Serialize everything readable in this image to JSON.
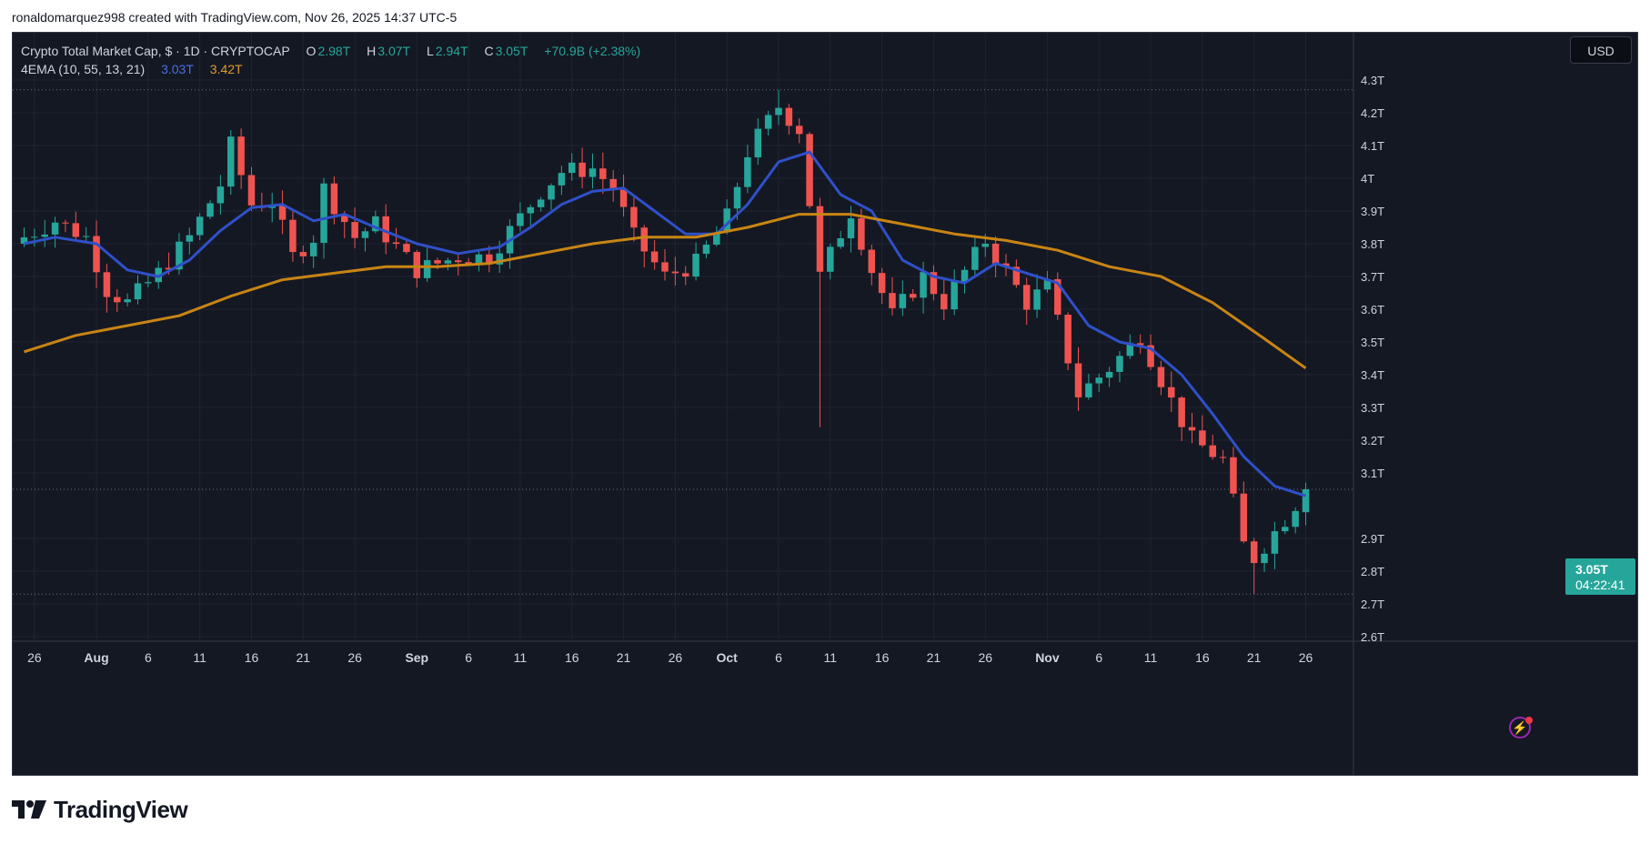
{
  "caption": "ronaldomarquez998 created with TradingView.com, Nov 26, 2025 14:37 UTC-5",
  "legend": {
    "symbol": "Crypto Total Market Cap, $ · 1D · CRYPTOCAP",
    "o_label": "O",
    "o_value": "2.98T",
    "h_label": "H",
    "h_value": "3.07T",
    "l_label": "L",
    "l_value": "2.94T",
    "c_label": "C",
    "c_value": "3.05T",
    "change": "+70.9B (+2.38%)",
    "indicator": "4EMA (10, 55, 13, 21)",
    "ema_fast_value": "3.03T",
    "ema_slow_value": "3.42T"
  },
  "currency_button": "USD",
  "last_price_label": "3.05T",
  "countdown": "04:22:41",
  "brand": "TradingView",
  "colors": {
    "background": "#141823",
    "up": "#26a69a",
    "down": "#ef5350",
    "ema_fast": "#2f50c8",
    "ema_slow": "#c88514",
    "grid": "#1f2430",
    "axis_text": "#d1d4dc"
  },
  "icons": {
    "flash": "lightning-icon",
    "logo": "tradingview-logo-icon"
  },
  "chart_data": {
    "type": "candlestick",
    "unit": "T (trillion USD)",
    "ylim": [
      2.6,
      4.3
    ],
    "y_ticks": [
      4.3,
      4.2,
      4.1,
      4.0,
      3.9,
      3.8,
      3.7,
      3.6,
      3.5,
      3.4,
      3.3,
      3.2,
      3.1,
      2.9,
      2.8,
      2.7,
      2.6
    ],
    "y_tick_labels": [
      "4.3T",
      "4.2T",
      "4.1T",
      "4T",
      "3.9T",
      "3.8T",
      "3.7T",
      "3.6T",
      "3.5T",
      "3.4T",
      "3.3T",
      "3.2T",
      "3.1T",
      "2.9T",
      "2.8T",
      "2.7T",
      "2.6T"
    ],
    "x_tick_labels": [
      "26",
      "Aug",
      "6",
      "11",
      "16",
      "21",
      "26",
      "Sep",
      "6",
      "11",
      "16",
      "21",
      "26",
      "Oct",
      "6",
      "11",
      "16",
      "21",
      "26",
      "Nov",
      "6",
      "11",
      "16",
      "21",
      "26"
    ],
    "x_tick_dates": [
      "2025-07-26",
      "2025-08-01",
      "2025-08-06",
      "2025-08-11",
      "2025-08-16",
      "2025-08-21",
      "2025-08-26",
      "2025-09-01",
      "2025-09-06",
      "2025-09-11",
      "2025-09-16",
      "2025-09-21",
      "2025-09-26",
      "2025-10-01",
      "2025-10-06",
      "2025-10-11",
      "2025-10-16",
      "2025-10-21",
      "2025-10-26",
      "2025-11-01",
      "2025-11-06",
      "2025-11-11",
      "2025-11-16",
      "2025-11-21",
      "2025-11-26"
    ],
    "start_date": "2025-07-25",
    "end_date": "2025-11-26",
    "highlighted_levels": [
      4.27,
      2.73,
      3.05
    ],
    "ohlc_key_points": [
      {
        "date": "2025-07-25",
        "value": 3.82
      },
      {
        "date": "2025-07-28",
        "value": 3.87
      },
      {
        "date": "2025-07-31",
        "value": 3.82
      },
      {
        "date": "2025-08-02",
        "value": 3.66
      },
      {
        "date": "2025-08-04",
        "value": 3.62
      },
      {
        "date": "2025-08-07",
        "value": 3.71
      },
      {
        "date": "2025-08-10",
        "value": 3.82
      },
      {
        "date": "2025-08-13",
        "value": 3.98
      },
      {
        "date": "2025-08-14",
        "value": 4.1
      },
      {
        "date": "2025-08-16",
        "value": 3.92
      },
      {
        "date": "2025-08-18",
        "value": 3.93
      },
      {
        "date": "2025-08-20",
        "value": 3.76
      },
      {
        "date": "2025-08-22",
        "value": 3.82
      },
      {
        "date": "2025-08-23",
        "value": 3.97
      },
      {
        "date": "2025-08-26",
        "value": 3.82
      },
      {
        "date": "2025-08-28",
        "value": 3.86
      },
      {
        "date": "2025-09-01",
        "value": 3.72
      },
      {
        "date": "2025-09-05",
        "value": 3.76
      },
      {
        "date": "2025-09-08",
        "value": 3.76
      },
      {
        "date": "2025-09-10",
        "value": 3.84
      },
      {
        "date": "2025-09-13",
        "value": 3.96
      },
      {
        "date": "2025-09-15",
        "value": 4.02
      },
      {
        "date": "2025-09-18",
        "value": 4.03
      },
      {
        "date": "2025-09-20",
        "value": 3.97
      },
      {
        "date": "2025-09-22",
        "value": 3.82
      },
      {
        "date": "2025-09-25",
        "value": 3.7
      },
      {
        "date": "2025-09-28",
        "value": 3.74
      },
      {
        "date": "2025-10-01",
        "value": 3.88
      },
      {
        "date": "2025-10-03",
        "value": 4.08
      },
      {
        "date": "2025-10-06",
        "value": 4.22
      },
      {
        "date": "2025-10-08",
        "value": 4.15
      },
      {
        "date": "2025-10-10",
        "value": 3.7
      },
      {
        "date": "2025-10-13",
        "value": 3.9
      },
      {
        "date": "2025-10-15",
        "value": 3.72
      },
      {
        "date": "2025-10-17",
        "value": 3.58
      },
      {
        "date": "2025-10-20",
        "value": 3.7
      },
      {
        "date": "2025-10-22",
        "value": 3.62
      },
      {
        "date": "2025-10-26",
        "value": 3.81
      },
      {
        "date": "2025-10-30",
        "value": 3.62
      },
      {
        "date": "2025-11-01",
        "value": 3.67
      },
      {
        "date": "2025-11-04",
        "value": 3.34
      },
      {
        "date": "2025-11-07",
        "value": 3.42
      },
      {
        "date": "2025-11-10",
        "value": 3.52
      },
      {
        "date": "2025-11-13",
        "value": 3.32
      },
      {
        "date": "2025-11-15",
        "value": 3.2
      },
      {
        "date": "2025-11-18",
        "value": 3.14
      },
      {
        "date": "2025-11-20",
        "value": 2.88
      },
      {
        "date": "2025-11-21",
        "value": 2.84
      },
      {
        "date": "2025-11-24",
        "value": 2.96
      },
      {
        "date": "2025-11-26",
        "value": 3.05
      }
    ],
    "series": [
      {
        "name": "EMA 10",
        "color": "#2f50c8",
        "points": [
          {
            "date": "2025-07-25",
            "value": 3.8
          },
          {
            "date": "2025-07-28",
            "value": 3.82
          },
          {
            "date": "2025-08-01",
            "value": 3.8
          },
          {
            "date": "2025-08-04",
            "value": 3.72
          },
          {
            "date": "2025-08-07",
            "value": 3.7
          },
          {
            "date": "2025-08-10",
            "value": 3.75
          },
          {
            "date": "2025-08-13",
            "value": 3.84
          },
          {
            "date": "2025-08-16",
            "value": 3.91
          },
          {
            "date": "2025-08-19",
            "value": 3.92
          },
          {
            "date": "2025-08-22",
            "value": 3.87
          },
          {
            "date": "2025-08-25",
            "value": 3.89
          },
          {
            "date": "2025-08-28",
            "value": 3.85
          },
          {
            "date": "2025-09-01",
            "value": 3.8
          },
          {
            "date": "2025-09-05",
            "value": 3.77
          },
          {
            "date": "2025-09-09",
            "value": 3.79
          },
          {
            "date": "2025-09-12",
            "value": 3.85
          },
          {
            "date": "2025-09-15",
            "value": 3.92
          },
          {
            "date": "2025-09-18",
            "value": 3.96
          },
          {
            "date": "2025-09-21",
            "value": 3.97
          },
          {
            "date": "2025-09-24",
            "value": 3.9
          },
          {
            "date": "2025-09-27",
            "value": 3.83
          },
          {
            "date": "2025-09-30",
            "value": 3.83
          },
          {
            "date": "2025-10-03",
            "value": 3.92
          },
          {
            "date": "2025-10-06",
            "value": 4.05
          },
          {
            "date": "2025-10-09",
            "value": 4.08
          },
          {
            "date": "2025-10-12",
            "value": 3.95
          },
          {
            "date": "2025-10-15",
            "value": 3.9
          },
          {
            "date": "2025-10-18",
            "value": 3.75
          },
          {
            "date": "2025-10-21",
            "value": 3.7
          },
          {
            "date": "2025-10-24",
            "value": 3.68
          },
          {
            "date": "2025-10-27",
            "value": 3.74
          },
          {
            "date": "2025-10-30",
            "value": 3.71
          },
          {
            "date": "2025-11-02",
            "value": 3.68
          },
          {
            "date": "2025-11-05",
            "value": 3.55
          },
          {
            "date": "2025-11-08",
            "value": 3.5
          },
          {
            "date": "2025-11-11",
            "value": 3.48
          },
          {
            "date": "2025-11-14",
            "value": 3.4
          },
          {
            "date": "2025-11-17",
            "value": 3.28
          },
          {
            "date": "2025-11-20",
            "value": 3.15
          },
          {
            "date": "2025-11-23",
            "value": 3.06
          },
          {
            "date": "2025-11-26",
            "value": 3.03
          }
        ]
      },
      {
        "name": "EMA 55",
        "color": "#c88514",
        "points": [
          {
            "date": "2025-07-25",
            "value": 3.47
          },
          {
            "date": "2025-07-30",
            "value": 3.52
          },
          {
            "date": "2025-08-04",
            "value": 3.55
          },
          {
            "date": "2025-08-09",
            "value": 3.58
          },
          {
            "date": "2025-08-14",
            "value": 3.64
          },
          {
            "date": "2025-08-19",
            "value": 3.69
          },
          {
            "date": "2025-08-24",
            "value": 3.71
          },
          {
            "date": "2025-08-29",
            "value": 3.73
          },
          {
            "date": "2025-09-03",
            "value": 3.73
          },
          {
            "date": "2025-09-08",
            "value": 3.74
          },
          {
            "date": "2025-09-13",
            "value": 3.77
          },
          {
            "date": "2025-09-18",
            "value": 3.8
          },
          {
            "date": "2025-09-23",
            "value": 3.82
          },
          {
            "date": "2025-09-28",
            "value": 3.82
          },
          {
            "date": "2025-10-03",
            "value": 3.85
          },
          {
            "date": "2025-10-08",
            "value": 3.89
          },
          {
            "date": "2025-10-13",
            "value": 3.89
          },
          {
            "date": "2025-10-18",
            "value": 3.86
          },
          {
            "date": "2025-10-23",
            "value": 3.83
          },
          {
            "date": "2025-10-28",
            "value": 3.81
          },
          {
            "date": "2025-11-02",
            "value": 3.78
          },
          {
            "date": "2025-11-07",
            "value": 3.73
          },
          {
            "date": "2025-11-12",
            "value": 3.7
          },
          {
            "date": "2025-11-17",
            "value": 3.62
          },
          {
            "date": "2025-11-22",
            "value": 3.51
          },
          {
            "date": "2025-11-26",
            "value": 3.42
          }
        ]
      }
    ]
  }
}
